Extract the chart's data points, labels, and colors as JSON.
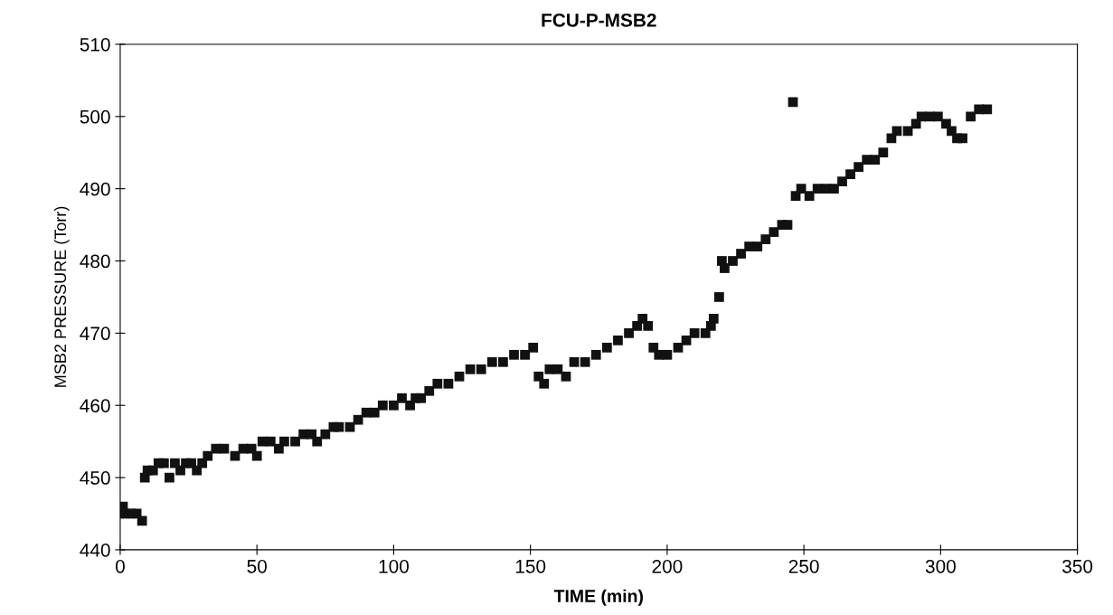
{
  "chart_data": {
    "type": "scatter",
    "title": "FCU-P-MSB2",
    "xlabel": "TIME (min)",
    "ylabel": "MSB2 PRESSURE (Torr)",
    "xlim": [
      0,
      350
    ],
    "xticks": [
      0,
      50,
      100,
      150,
      200,
      250,
      300,
      350
    ],
    "ylim": [
      440,
      510
    ],
    "yticks": [
      440,
      450,
      460,
      470,
      480,
      490,
      500,
      510
    ],
    "grid": false,
    "legend": false,
    "marker": "square",
    "series": [
      {
        "color": "#111111",
        "x": [
          0,
          1,
          2,
          4,
          6,
          8,
          9,
          10,
          12,
          14,
          16,
          18,
          20,
          22,
          24,
          26,
          28,
          30,
          32,
          35,
          38,
          42,
          45,
          48,
          50,
          52,
          55,
          58,
          60,
          64,
          67,
          70,
          72,
          75,
          78,
          80,
          84,
          87,
          90,
          93,
          96,
          100,
          103,
          106,
          108,
          110,
          113,
          116,
          120,
          124,
          128,
          132,
          136,
          140,
          144,
          148,
          151,
          153,
          155,
          157,
          160,
          163,
          166,
          170,
          174,
          178,
          182,
          186,
          189,
          191,
          193,
          195,
          197,
          200,
          204,
          207,
          210,
          214,
          216,
          217,
          219,
          220,
          221,
          224,
          227,
          230,
          233,
          236,
          239,
          242,
          244,
          246,
          247,
          249,
          252,
          255,
          258,
          261,
          264,
          267,
          270,
          273,
          276,
          279,
          282,
          284,
          288,
          291,
          293,
          296,
          299,
          302,
          304,
          306,
          308,
          311,
          314,
          317
        ],
        "values": [
          445,
          446,
          445,
          445,
          445,
          444,
          450,
          451,
          451,
          452,
          452,
          450,
          452,
          451,
          452,
          452,
          451,
          452,
          453,
          454,
          454,
          453,
          454,
          454,
          453,
          455,
          455,
          454,
          455,
          455,
          456,
          456,
          455,
          456,
          457,
          457,
          457,
          458,
          459,
          459,
          460,
          460,
          461,
          460,
          461,
          461,
          462,
          463,
          463,
          464,
          465,
          465,
          466,
          466,
          467,
          467,
          468,
          464,
          463,
          465,
          465,
          464,
          466,
          466,
          467,
          468,
          469,
          470,
          471,
          472,
          471,
          468,
          467,
          467,
          468,
          469,
          470,
          470,
          471,
          472,
          475,
          480,
          479,
          480,
          481,
          482,
          482,
          483,
          484,
          485,
          485,
          502,
          489,
          490,
          489,
          490,
          490,
          490,
          491,
          492,
          493,
          494,
          494,
          495,
          497,
          498,
          498,
          499,
          500,
          500,
          500,
          499,
          498,
          497,
          497,
          500,
          501,
          501
        ]
      }
    ]
  }
}
